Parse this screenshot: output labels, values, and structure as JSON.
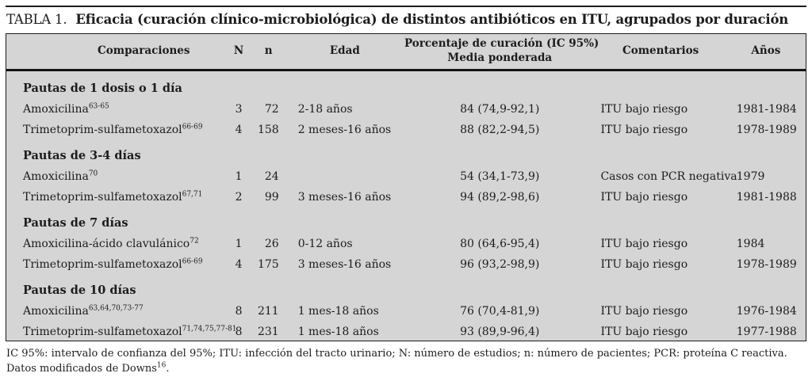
{
  "title": {
    "label": "TABLA 1.",
    "text": "Eficacia (curación clínico-microbiológica) de distintos antibióticos en ITU, agrupados por duración"
  },
  "table": {
    "headers": {
      "comparaciones": "Comparaciones",
      "n_estudios": "N",
      "n_pacientes": "n",
      "edad": "Edad",
      "porcentaje_linea1": "Porcentaje de curación (IC 95%)",
      "porcentaje_linea2": "Media ponderada",
      "comentarios": "Comentarios",
      "anos": "Años"
    },
    "groups": [
      {
        "label": "Pautas de 1 dosis o 1 día",
        "rows": [
          {
            "name": "Amoxicilina",
            "refs": "63-65",
            "N": "3",
            "n": "72",
            "edad": "2-18 años",
            "porcentaje": "84 (74,9-92,1)",
            "comentarios": "ITU bajo riesgo",
            "anos": "1981-1984"
          },
          {
            "name": "Trimetoprim-sulfametoxazol",
            "refs": "66-69",
            "N": "4",
            "n": "158",
            "edad": "2 meses-16 años",
            "porcentaje": "88 (82,2-94,5)",
            "comentarios": "ITU bajo riesgo",
            "anos": "1978-1989"
          }
        ]
      },
      {
        "label": "Pautas de 3-4 días",
        "rows": [
          {
            "name": "Amoxicilina",
            "refs": "70",
            "N": "1",
            "n": "24",
            "edad": "",
            "porcentaje": "54 (34,1-73,9)",
            "comentarios": "Casos con PCR negativa",
            "anos": "1979"
          },
          {
            "name": "Trimetoprim-sulfametoxazol",
            "refs": "67,71",
            "N": "2",
            "n": "99",
            "edad": "3 meses-16 años",
            "porcentaje": "94 (89,2-98,6)",
            "comentarios": "ITU bajo riesgo",
            "anos": "1981-1988"
          }
        ]
      },
      {
        "label": "Pautas de 7 días",
        "rows": [
          {
            "name": "Amoxicilina-ácido clavulánico",
            "refs": "72",
            "N": "1",
            "n": "26",
            "edad": "0-12 años",
            "porcentaje": "80 (64,6-95,4)",
            "comentarios": "ITU bajo riesgo",
            "anos": "1984"
          },
          {
            "name": "Trimetoprim-sulfametoxazol",
            "refs": "66-69",
            "N": "4",
            "n": "175",
            "edad": "3 meses-16 años",
            "porcentaje": "96 (93,2-98,9)",
            "comentarios": "ITU bajo riesgo",
            "anos": "1978-1989"
          }
        ]
      },
      {
        "label": "Pautas de 10 días",
        "rows": [
          {
            "name": "Amoxicilina",
            "refs": "63,64,70,73-77",
            "N": "8",
            "n": "211",
            "edad": "1 mes-18 años",
            "porcentaje": "76 (70,4-81,9)",
            "comentarios": "ITU bajo riesgo",
            "anos": "1976-1984"
          },
          {
            "name": "Trimetoprim-sulfametoxazol",
            "refs": "71,74,75,77-81",
            "N": "8",
            "n": "231",
            "edad": "1 mes-18 años",
            "porcentaje": "93 (89,9-96,4)",
            "comentarios": "ITU bajo riesgo",
            "anos": "1977-1988"
          }
        ]
      }
    ]
  },
  "footnotes": {
    "line1": "IC 95%: intervalo de confianza del 95%; ITU: infección del tracto urinario; N: número de estudios; n: número de pacientes; PCR: proteína C reactiva.",
    "line2_text": "Datos modificados de Downs",
    "line2_ref": "16",
    "line2_suffix": "."
  },
  "colors": {
    "table_background": "#d5d5d5",
    "text": "#1c1c1c",
    "border": "#1c1c1c"
  }
}
